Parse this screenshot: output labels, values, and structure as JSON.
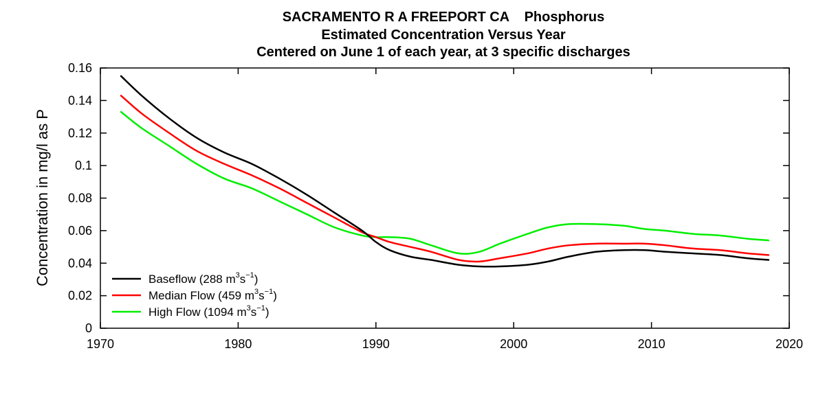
{
  "chart_data": {
    "type": "line",
    "title_lines": [
      "SACRAMENTO R A FREEPORT CA    Phosphorus",
      "Estimated Concentration Versus Year",
      "Centered on June 1 of each year, at 3 specific discharges"
    ],
    "xlabel": "",
    "ylabel": "Concentration in mg/l as P",
    "xlim": [
      1970,
      2020
    ],
    "ylim": [
      0,
      0.16
    ],
    "x_ticks": [
      1970,
      1980,
      1990,
      2000,
      2010,
      2020
    ],
    "x_tick_labels": [
      "1970",
      "1980",
      "1990",
      "2000",
      "2010",
      "2020"
    ],
    "y_ticks": [
      0,
      0.02,
      0.04,
      0.06,
      0.08,
      0.1,
      0.12,
      0.14,
      0.16
    ],
    "y_tick_labels": [
      "0",
      "0.02",
      "0.04",
      "0.06",
      "0.08",
      "0.1",
      "0.12",
      "0.14",
      "0.16"
    ],
    "grid": false,
    "legend_position": "bottom-left",
    "series": [
      {
        "name": "Baseflow (288 m3s-1)",
        "legend_parts": [
          "Baseflow (288 m",
          "3",
          "s",
          "−1",
          ")"
        ],
        "color": "#000000",
        "x": [
          1971.5,
          1973,
          1975,
          1977,
          1979,
          1981,
          1983,
          1985,
          1987,
          1989,
          1990,
          1991,
          1992.5,
          1994,
          1996,
          1997.5,
          1999,
          2001,
          2002.5,
          2004,
          2006,
          2008,
          2009.5,
          2011,
          2013,
          2015,
          2017,
          2018.5
        ],
        "y": [
          0.155,
          0.143,
          0.129,
          0.117,
          0.108,
          0.101,
          0.092,
          0.082,
          0.071,
          0.06,
          0.053,
          0.048,
          0.044,
          0.042,
          0.039,
          0.038,
          0.038,
          0.039,
          0.041,
          0.044,
          0.047,
          0.048,
          0.048,
          0.047,
          0.046,
          0.045,
          0.043,
          0.042
        ]
      },
      {
        "name": "Median Flow (459 m3s-1)",
        "legend_parts": [
          "Median Flow (459 m",
          "3",
          "s",
          "−1",
          ")"
        ],
        "color": "#ff0000",
        "x": [
          1971.5,
          1973,
          1975,
          1977,
          1979,
          1981,
          1983,
          1985,
          1987,
          1989,
          1990,
          1991,
          1992.5,
          1994,
          1996,
          1997.5,
          1999,
          2001,
          2002.5,
          2004,
          2006,
          2008,
          2009.5,
          2011,
          2013,
          2015,
          2017,
          2018.5
        ],
        "y": [
          0.143,
          0.132,
          0.12,
          0.109,
          0.101,
          0.094,
          0.086,
          0.077,
          0.068,
          0.059,
          0.056,
          0.053,
          0.05,
          0.047,
          0.042,
          0.041,
          0.043,
          0.046,
          0.049,
          0.051,
          0.052,
          0.052,
          0.052,
          0.051,
          0.049,
          0.048,
          0.046,
          0.045
        ]
      },
      {
        "name": "High Flow (1094 m3s-1)",
        "legend_parts": [
          "High Flow (1094 m",
          "3",
          "s",
          "−1",
          ")"
        ],
        "color": "#00ee00",
        "x": [
          1971.5,
          1973,
          1975,
          1977,
          1979,
          1981,
          1983,
          1985,
          1987,
          1989,
          1990,
          1991,
          1992.5,
          1994,
          1996,
          1997.5,
          1999,
          2001,
          2002.5,
          2004,
          2006,
          2008,
          2009.5,
          2011,
          2013,
          2015,
          2017,
          2018.5
        ],
        "y": [
          0.133,
          0.123,
          0.112,
          0.101,
          0.092,
          0.086,
          0.078,
          0.07,
          0.062,
          0.057,
          0.056,
          0.056,
          0.055,
          0.051,
          0.046,
          0.047,
          0.052,
          0.058,
          0.062,
          0.064,
          0.064,
          0.063,
          0.061,
          0.06,
          0.058,
          0.057,
          0.055,
          0.054
        ]
      }
    ]
  }
}
